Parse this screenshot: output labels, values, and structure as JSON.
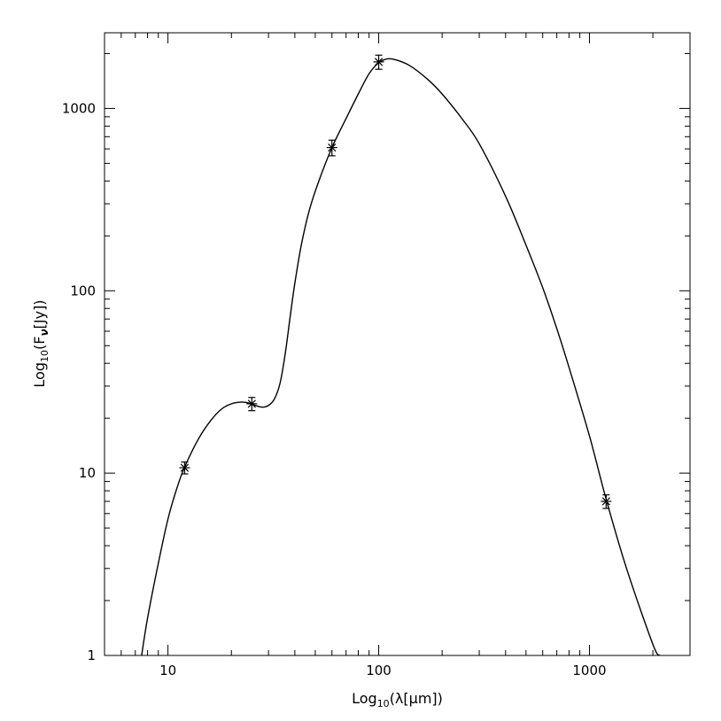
{
  "chart_data": {
    "type": "scatter",
    "xlabel": {
      "pre": "Log",
      "sub": "10",
      "post": "(λ[μm])"
    },
    "ylabel": {
      "pre": "Log",
      "sub": "10",
      "mid": "(F",
      "nu": "ν",
      "post": "[Jy])"
    },
    "x_scale": "log",
    "y_scale": "log",
    "xlim": [
      5,
      3000
    ],
    "ylim": [
      1,
      2600
    ],
    "x_ticks": [
      {
        "value": 10,
        "label": "10"
      },
      {
        "value": 100,
        "label": "100"
      },
      {
        "value": 1000,
        "label": "1000"
      }
    ],
    "y_ticks": [
      {
        "value": 1,
        "label": "1"
      },
      {
        "value": 10,
        "label": "10"
      },
      {
        "value": 100,
        "label": "100"
      },
      {
        "value": 1000,
        "label": "1000"
      }
    ],
    "grid": false,
    "series": [
      {
        "kind": "points_with_errorbars",
        "marker": "asterisk",
        "points": [
          {
            "x": 12,
            "y": 10.7,
            "yerr": 0.8
          },
          {
            "x": 25,
            "y": 24,
            "yerr": 2
          },
          {
            "x": 60,
            "y": 610,
            "yerr": 60
          },
          {
            "x": 100,
            "y": 1800,
            "yerr": 160
          },
          {
            "x": 1200,
            "y": 7.0,
            "yerr": 0.6
          }
        ]
      },
      {
        "kind": "model_curve",
        "points": [
          [
            7.5,
            1.0
          ],
          [
            8,
            1.6
          ],
          [
            9,
            3.2
          ],
          [
            10,
            5.6
          ],
          [
            11,
            8.2
          ],
          [
            12,
            10.8
          ],
          [
            14,
            15.5
          ],
          [
            16,
            19.5
          ],
          [
            18,
            22.5
          ],
          [
            20,
            24
          ],
          [
            22,
            24.5
          ],
          [
            24,
            24.3
          ],
          [
            26,
            23.5
          ],
          [
            28,
            23
          ],
          [
            30,
            23.5
          ],
          [
            32,
            25.5
          ],
          [
            34,
            31
          ],
          [
            36,
            45
          ],
          [
            38,
            72
          ],
          [
            40,
            110
          ],
          [
            43,
            180
          ],
          [
            47,
            280
          ],
          [
            52,
            400
          ],
          [
            60,
            610
          ],
          [
            70,
            880
          ],
          [
            80,
            1200
          ],
          [
            90,
            1550
          ],
          [
            100,
            1780
          ],
          [
            110,
            1870
          ],
          [
            120,
            1850
          ],
          [
            140,
            1720
          ],
          [
            170,
            1450
          ],
          [
            200,
            1200
          ],
          [
            250,
            870
          ],
          [
            300,
            640
          ],
          [
            400,
            330
          ],
          [
            500,
            178
          ],
          [
            600,
            104
          ],
          [
            700,
            62
          ],
          [
            800,
            38
          ],
          [
            1000,
            16
          ],
          [
            1200,
            7.2
          ],
          [
            1500,
            3.0
          ],
          [
            2000,
            1.15
          ],
          [
            2150,
            1.0
          ]
        ]
      }
    ]
  }
}
